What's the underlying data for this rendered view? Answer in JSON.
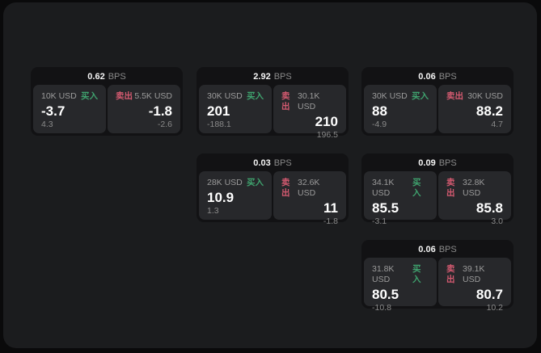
{
  "colors": {
    "outer-bg": "#0a0a0b",
    "panel-bg": "#1b1c1e",
    "card-bg": "#121214",
    "tile-bg": "#27282b",
    "text-primary": "#f5f5f5",
    "text-secondary": "#9b9b9b",
    "text-tertiary": "#8a8a8a",
    "buy-green": "#3fa26e",
    "sell-red": "#d45a70"
  },
  "bps_unit": "BPS",
  "cards": [
    {
      "bps": "0.62",
      "buy": {
        "size": "10K USD",
        "label": "买入",
        "price": "-3.7",
        "delta": "4.3"
      },
      "sell": {
        "label": "卖出",
        "size": "5.5K USD",
        "price": "-1.8",
        "delta": "-2.6"
      }
    },
    {
      "bps": "2.92",
      "buy": {
        "size": "30K USD",
        "label": "买入",
        "price": "201",
        "delta": "-188.1"
      },
      "sell": {
        "label": "卖出",
        "size": "30.1K USD",
        "price": "210",
        "delta": "196.5"
      }
    },
    {
      "bps": "0.06",
      "buy": {
        "size": "30K USD",
        "label": "买入",
        "price": "88",
        "delta": "-4.9"
      },
      "sell": {
        "label": "卖出",
        "size": "30K USD",
        "price": "88.2",
        "delta": "4.7"
      }
    },
    {
      "bps": "0.03",
      "buy": {
        "size": "28K USD",
        "label": "买入",
        "price": "10.9",
        "delta": "1.3"
      },
      "sell": {
        "label": "卖出",
        "size": "32.6K USD",
        "price": "11",
        "delta": "-1.8"
      }
    },
    {
      "bps": "0.09",
      "buy": {
        "size": "34.1K USD",
        "label": "买入",
        "price": "85.5",
        "delta": "-3.1"
      },
      "sell": {
        "label": "卖出",
        "size": "32.8K USD",
        "price": "85.8",
        "delta": "3.0"
      }
    },
    {
      "bps": "0.06",
      "buy": {
        "size": "31.8K USD",
        "label": "买入",
        "price": "80.5",
        "delta": "-10.8"
      },
      "sell": {
        "label": "卖出",
        "size": "39.1K USD",
        "price": "80.7",
        "delta": "10.2"
      }
    }
  ]
}
